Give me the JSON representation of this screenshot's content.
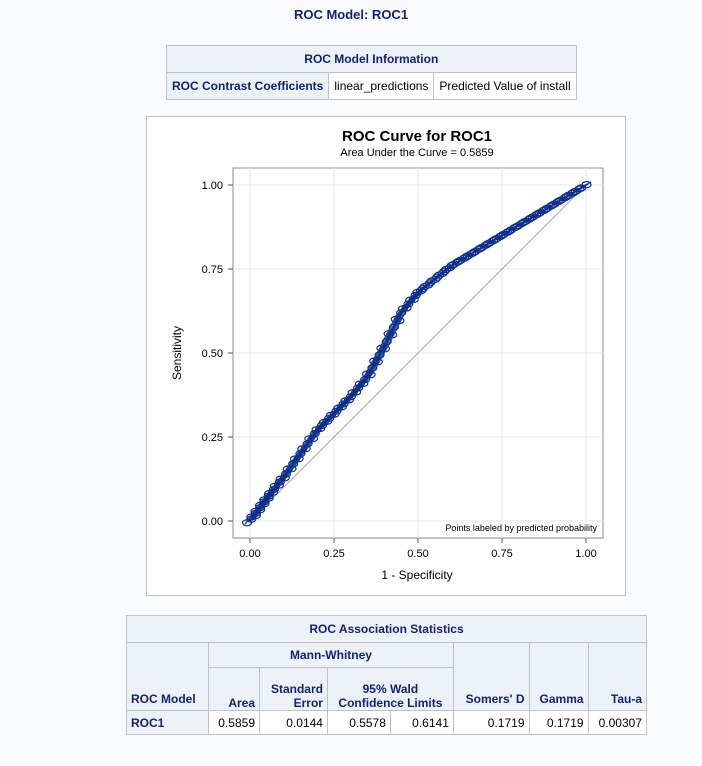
{
  "page_title": "ROC Model: ROC1",
  "info_table": {
    "title": "ROC Model Information",
    "row_label": "ROC Contrast Coefficients",
    "variable": "linear_predictions",
    "description": "Predicted Value of install"
  },
  "colors": {
    "curve": "#0b2f8a",
    "header_bg": "#edf2f9",
    "header_text": "#112277",
    "grid": "#e6e6e6"
  },
  "chart_data": {
    "type": "line",
    "title": "ROC Curve for ROC1",
    "subtitle": "Area Under the Curve = 0.5859",
    "xlabel": "1 - Specificity",
    "ylabel": "Sensitivity",
    "xlim": [
      0,
      1
    ],
    "ylim": [
      0,
      1
    ],
    "xticks": [
      "0.00",
      "0.25",
      "0.50",
      "0.75",
      "1.00"
    ],
    "yticks": [
      "0.00",
      "0.25",
      "0.50",
      "0.75",
      "1.00"
    ],
    "grid": true,
    "annotation": "Points labeled by predicted probability",
    "series": [
      {
        "x": [
          0,
          0.03,
          0.06,
          0.1,
          0.15,
          0.2,
          0.25,
          0.3,
          0.35,
          0.4,
          0.45,
          0.5,
          0.55,
          0.6,
          0.65,
          0.7,
          0.75,
          0.8,
          0.85,
          0.9,
          0.95,
          1.0
        ],
        "y": [
          0,
          0.04,
          0.08,
          0.13,
          0.2,
          0.27,
          0.32,
          0.37,
          0.43,
          0.52,
          0.62,
          0.68,
          0.72,
          0.76,
          0.79,
          0.82,
          0.85,
          0.88,
          0.91,
          0.94,
          0.97,
          1.0
        ]
      }
    ],
    "reference_line": {
      "x": [
        0,
        1
      ],
      "y": [
        0,
        1
      ]
    }
  },
  "assoc_table": {
    "title": "ROC Association Statistics",
    "group_label": "Mann-Whitney",
    "ci_label_1": "95% Wald",
    "ci_label_2": "Confidence Limits",
    "col_model": "ROC Model",
    "col_area": "Area",
    "col_se_1": "Standard",
    "col_se_2": "Error",
    "col_somers": "Somers' D",
    "col_gamma": "Gamma",
    "col_tau": "Tau-a",
    "row": {
      "model": "ROC1",
      "area": "0.5859",
      "se": "0.0144",
      "lower": "0.5578",
      "upper": "0.6141",
      "somers": "0.1719",
      "gamma": "0.1719",
      "tau": "0.00307"
    }
  }
}
